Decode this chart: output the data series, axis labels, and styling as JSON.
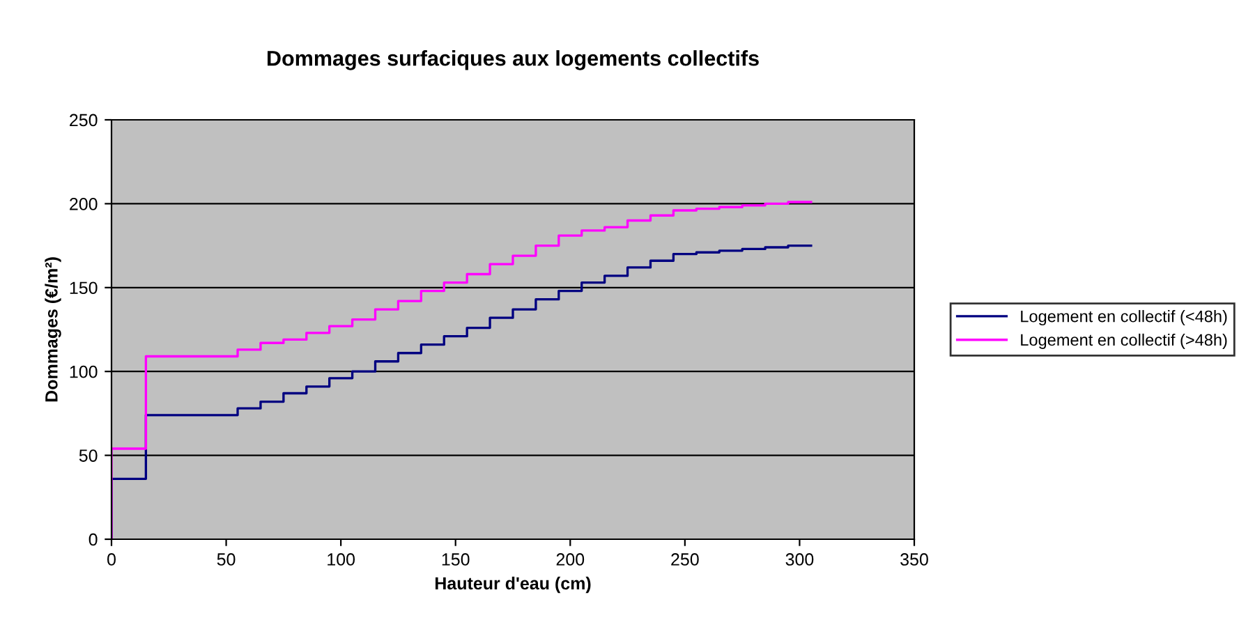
{
  "chart_data": {
    "type": "step",
    "title": "Dommages surfaciques aux logements collectifs",
    "xlabel": "Hauteur d'eau (cm)",
    "ylabel": "Dommages (€/m²)",
    "x": [
      0,
      0,
      15,
      25,
      35,
      45,
      55,
      65,
      75,
      85,
      95,
      105,
      115,
      125,
      135,
      145,
      155,
      165,
      175,
      185,
      195,
      205,
      215,
      225,
      235,
      245,
      255,
      265,
      275,
      285,
      295,
      305
    ],
    "series": [
      {
        "name": "Logement en collectif (<48h)",
        "color": "#000080",
        "values": [
          0,
          36,
          74,
          74,
          74,
          74,
          78,
          82,
          87,
          91,
          96,
          100,
          106,
          111,
          116,
          121,
          126,
          132,
          137,
          143,
          148,
          153,
          157,
          162,
          166,
          170,
          171,
          172,
          173,
          174,
          175,
          175
        ]
      },
      {
        "name": "Logement en collectif (>48h)",
        "color": "#ff00ff",
        "values": [
          0,
          54,
          109,
          109,
          109,
          109,
          113,
          117,
          119,
          123,
          127,
          131,
          137,
          142,
          148,
          153,
          158,
          164,
          169,
          175,
          181,
          184,
          186,
          190,
          193,
          196,
          197,
          198,
          199,
          200,
          201,
          201
        ]
      }
    ],
    "xlim": [
      0,
      350
    ],
    "xticks": [
      0,
      50,
      100,
      150,
      200,
      250,
      300,
      350
    ],
    "ylim": [
      0,
      250
    ],
    "yticks": [
      0,
      50,
      100,
      150,
      200,
      250
    ],
    "grid": "y",
    "legend": "right",
    "marker": "none",
    "line_style": "solid"
  }
}
